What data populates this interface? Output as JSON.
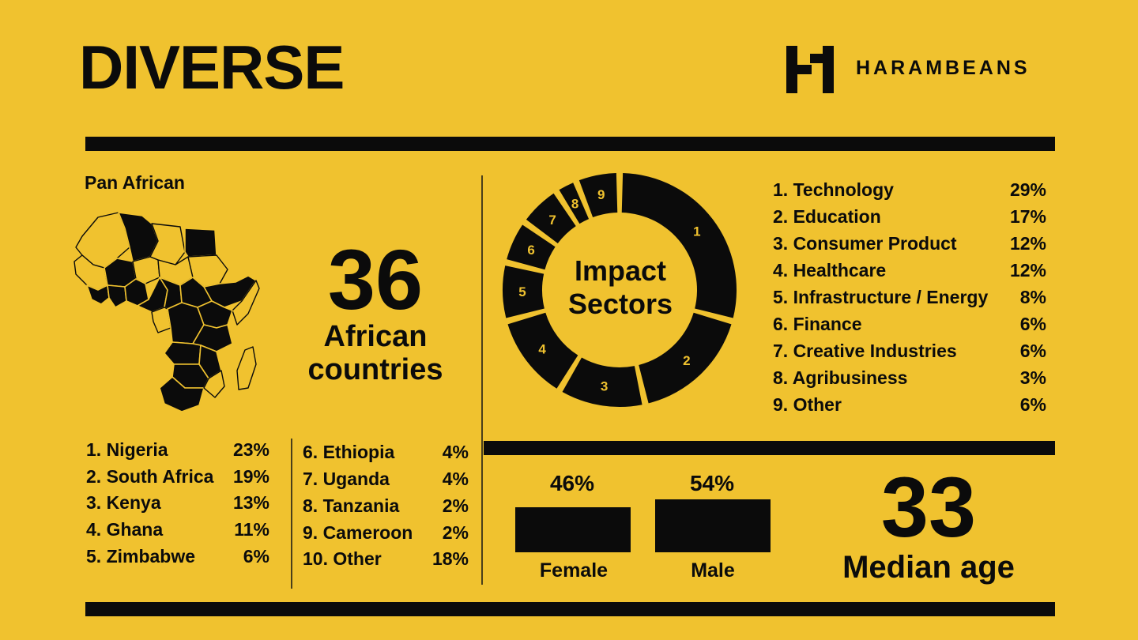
{
  "header": {
    "title": "DIVERSE",
    "brand": "HARAMBEANS"
  },
  "colors": {
    "background": "#f0c22f",
    "ink": "#0b0b0b"
  },
  "geography": {
    "label": "Pan African",
    "count": "36",
    "count_caption_line1": "African",
    "count_caption_line2": "countries",
    "countries": [
      {
        "label": "1. Nigeria",
        "pct": "23%"
      },
      {
        "label": "2. South Africa",
        "pct": "19%"
      },
      {
        "label": "3. Kenya",
        "pct": "13%"
      },
      {
        "label": "4. Ghana",
        "pct": "11%"
      },
      {
        "label": "5. Zimbabwe",
        "pct": "6%"
      },
      {
        "label": "6. Ethiopia",
        "pct": "4%"
      },
      {
        "label": "7. Uganda",
        "pct": "4%"
      },
      {
        "label": "8. Tanzania",
        "pct": "2%"
      },
      {
        "label": "9. Cameroon",
        "pct": "2%"
      },
      {
        "label": "10. Other",
        "pct": "18%"
      }
    ]
  },
  "sectors": {
    "center_line1": "Impact",
    "center_line2": "Sectors",
    "items": [
      {
        "label": "1. Technology",
        "pct": "29%"
      },
      {
        "label": "2. Education",
        "pct": "17%"
      },
      {
        "label": "3. Consumer Product",
        "pct": "12%"
      },
      {
        "label": "4. Healthcare",
        "pct": "12%"
      },
      {
        "label": "5. Infrastructure / Energy",
        "pct": "8%"
      },
      {
        "label": "6. Finance",
        "pct": "6%"
      },
      {
        "label": "7. Creative Industries",
        "pct": "6%"
      },
      {
        "label": "8. Agribusiness",
        "pct": "3%"
      },
      {
        "label": "9. Other",
        "pct": "6%"
      }
    ]
  },
  "gender": {
    "female_label": "Female",
    "female_pct": "46%",
    "male_label": "Male",
    "male_pct": "54%"
  },
  "age": {
    "value": "33",
    "caption": "Median age"
  },
  "chart_data": [
    {
      "type": "pie",
      "title": "Impact Sectors",
      "categories": [
        "1",
        "2",
        "3",
        "4",
        "5",
        "6",
        "7",
        "8",
        "9"
      ],
      "values": [
        29,
        17,
        12,
        12,
        8,
        6,
        6,
        3,
        6
      ]
    },
    {
      "type": "bar",
      "categories": [
        "Female",
        "Male"
      ],
      "values": [
        46,
        54
      ]
    }
  ]
}
